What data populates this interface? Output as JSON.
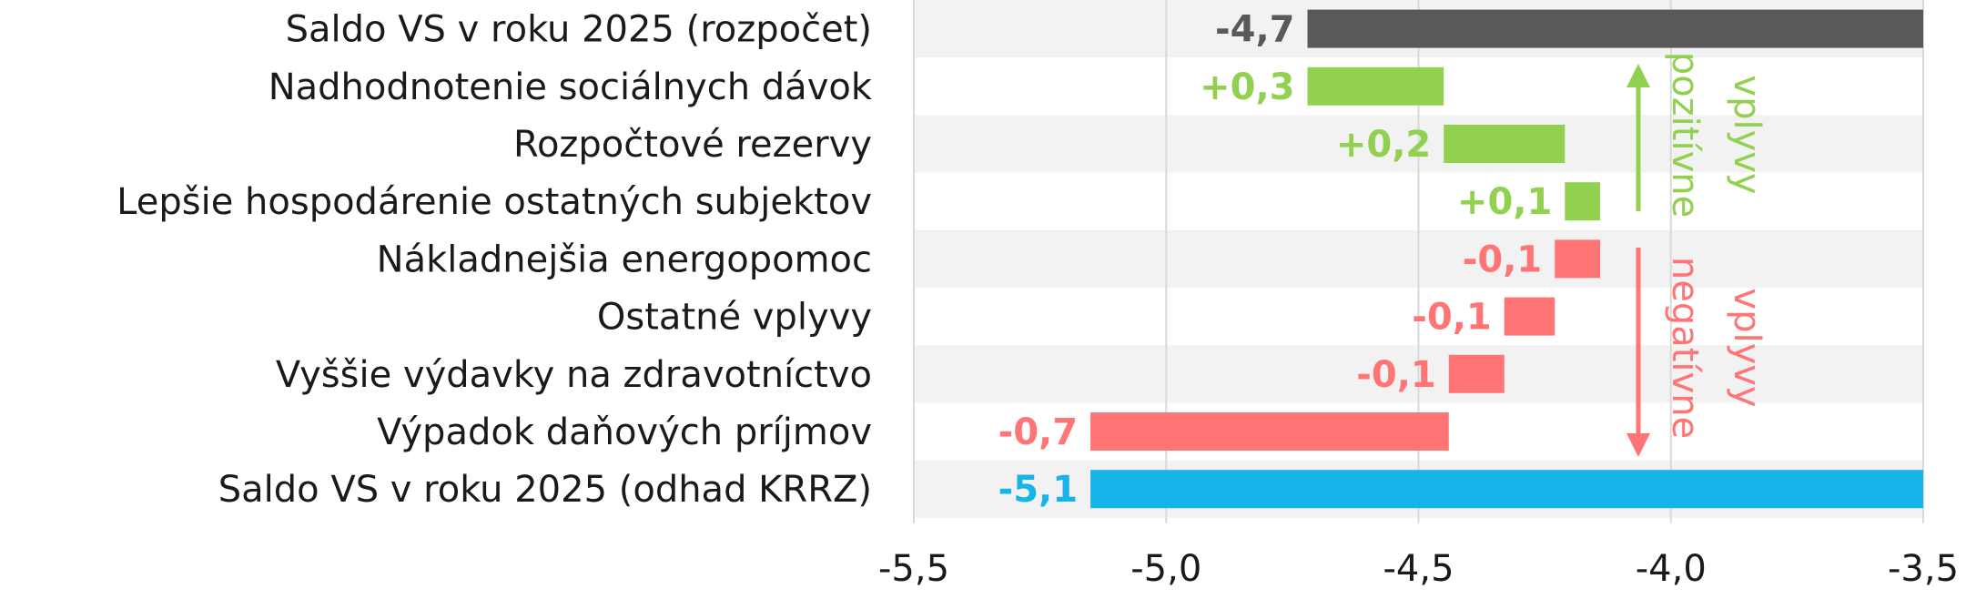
{
  "chart_data": {
    "type": "bar",
    "subtype": "waterfall-horizontal",
    "title": "",
    "xlabel": "",
    "ylabel": "",
    "xlim": [
      -5.5,
      -3.5
    ],
    "x_ticks": [
      -5.5,
      -5.0,
      -4.5,
      -4.0,
      -3.5
    ],
    "x_tick_labels": [
      "-5,5",
      "-5,0",
      "-4,5",
      "-4,0",
      "-3,5"
    ],
    "grid": "vertical",
    "bars": [
      {
        "category": "Saldo VS v roku 2025 (rozpočet)",
        "start": -4.72,
        "end": -3.5,
        "value_label": "-4,7",
        "kind": "total-start"
      },
      {
        "category": "Nadhodnotenie sociálnych dávok",
        "start": -4.72,
        "end": -4.45,
        "value_label": "+0,3",
        "kind": "positive"
      },
      {
        "category": "Rozpočtové rezervy",
        "start": -4.45,
        "end": -4.21,
        "value_label": "+0,2",
        "kind": "positive"
      },
      {
        "category": "Lepšie hospodárenie ostatných subjektov",
        "start": -4.21,
        "end": -4.14,
        "value_label": "+0,1",
        "kind": "positive"
      },
      {
        "category": "Nákladnejšia energopomoc",
        "start": -4.23,
        "end": -4.14,
        "value_label": "-0,1",
        "kind": "negative"
      },
      {
        "category": "Ostatné vplyvy",
        "start": -4.33,
        "end": -4.23,
        "value_label": "-0,1",
        "kind": "negative"
      },
      {
        "category": "Vyššie výdavky na zdravotníctvo",
        "start": -4.44,
        "end": -4.33,
        "value_label": "-0,1",
        "kind": "negative"
      },
      {
        "category": "Výpadok daňových príjmov",
        "start": -5.15,
        "end": -4.44,
        "value_label": "-0,7",
        "kind": "negative"
      },
      {
        "category": "Saldo VS v roku 2025 (odhad KRRZ)",
        "start": -5.15,
        "end": -3.5,
        "value_label": "-5,1",
        "kind": "total-end"
      }
    ],
    "colors": {
      "total-start": "#595959",
      "positive": "#92d050",
      "negative": "#ff7575",
      "total-end": "#17b4e9",
      "stripe": "#f2f2f2",
      "grid": "#d9d9d9"
    },
    "annotations": {
      "positive": {
        "line1": "pozitívne",
        "line2": "vplyvy",
        "color": "#92d050"
      },
      "negative": {
        "line1": "negatívne",
        "line2": "vplyvy",
        "color": "#ff7575"
      }
    }
  }
}
